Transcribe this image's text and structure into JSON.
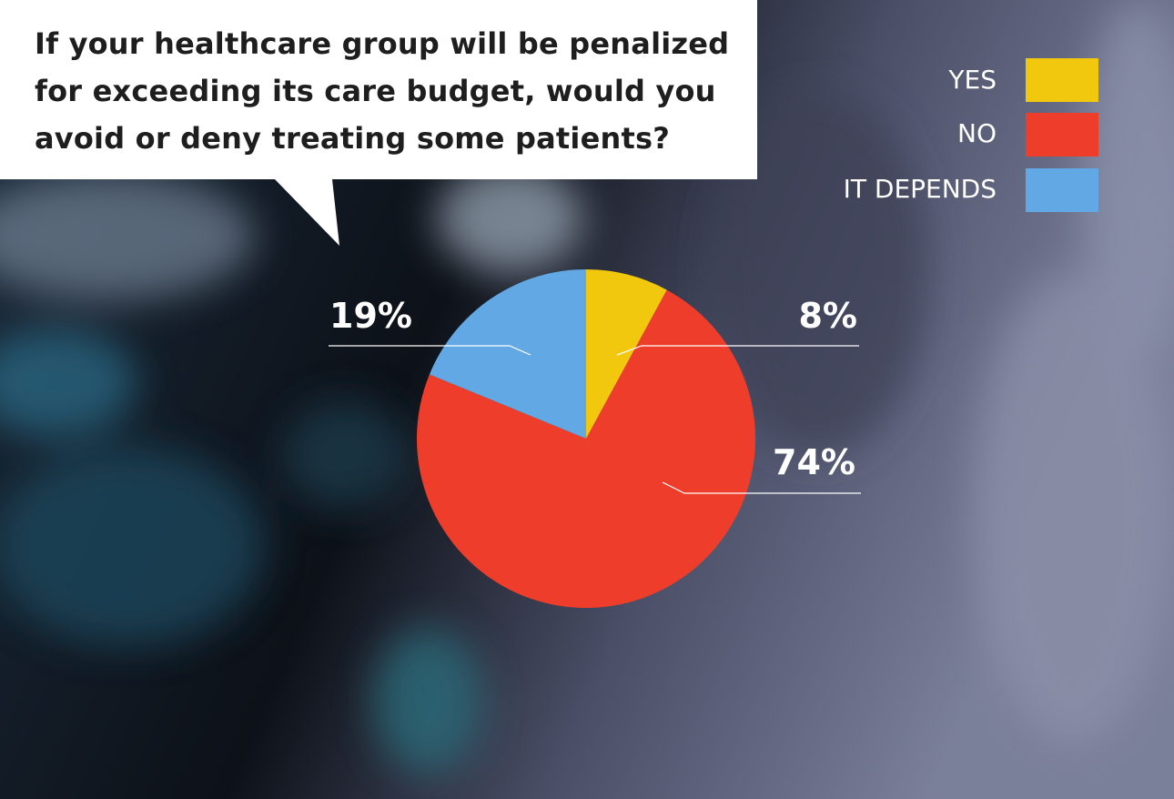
{
  "question": "If your healthcare group will be penalized for exceeding its care budget, would you avoid or deny treating some patients?",
  "colors": {
    "yes": "#f2c80f",
    "no": "#ee3d2b",
    "depends": "#62a8e5"
  },
  "chart_data": {
    "type": "pie",
    "title": "If your healthcare group will be penalized for exceeding its care budget, would you avoid or deny treating some patients?",
    "legend_position": "top-right",
    "slices": [
      {
        "label": "YES",
        "value": 8,
        "display": "8%",
        "color": "#f2c80f"
      },
      {
        "label": "NO",
        "value": 74,
        "display": "74%",
        "color": "#ee3d2b"
      },
      {
        "label": "IT DEPENDS",
        "value": 19,
        "display": "19%",
        "color": "#62a8e5"
      }
    ]
  }
}
